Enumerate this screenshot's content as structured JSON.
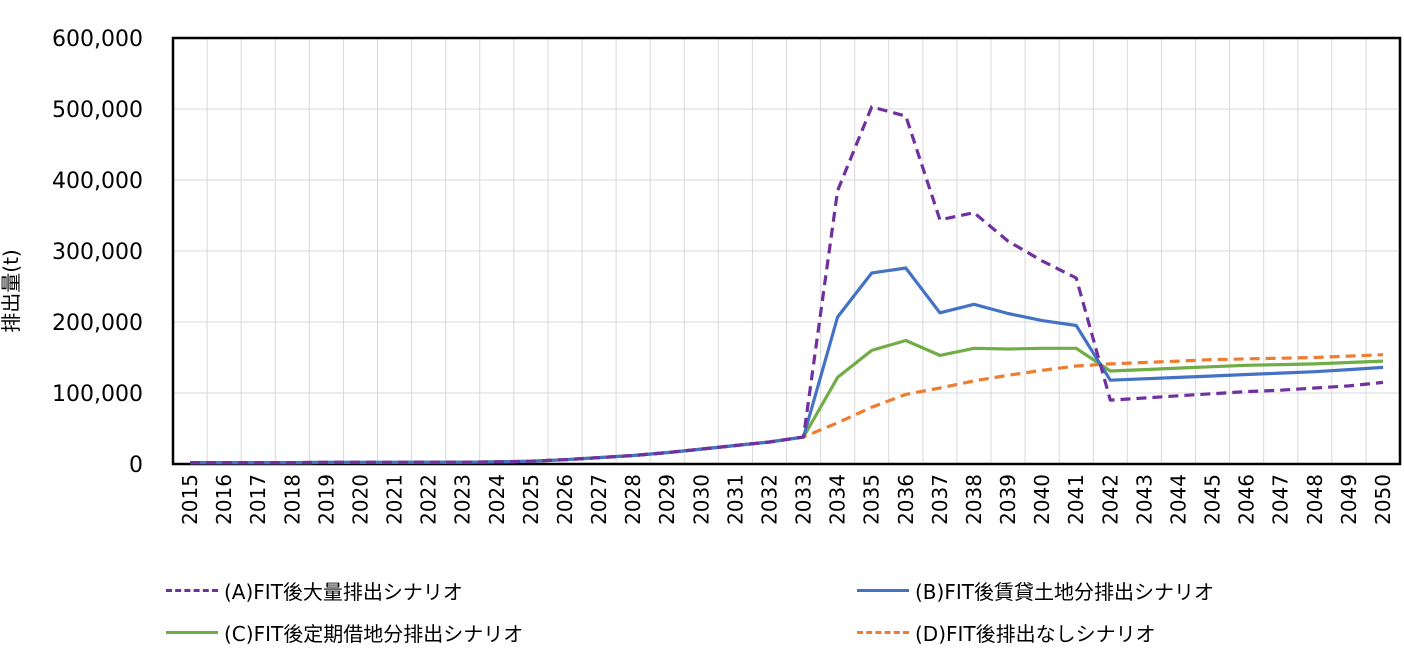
{
  "chart_data": {
    "type": "line",
    "ylabel": "排出量(t)",
    "xlabel": "",
    "ylim": [
      0,
      600000
    ],
    "yticks": [
      0,
      100000,
      200000,
      300000,
      400000,
      500000,
      600000
    ],
    "ytick_labels": [
      "0",
      "100,000",
      "200,000",
      "300,000",
      "400,000",
      "500,000",
      "600,000"
    ],
    "categories": [
      "2015",
      "2016",
      "2017",
      "2018",
      "2019",
      "2020",
      "2021",
      "2022",
      "2023",
      "2024",
      "2025",
      "2026",
      "2027",
      "2028",
      "2029",
      "2030",
      "2031",
      "2032",
      "2033",
      "2034",
      "2035",
      "2036",
      "2037",
      "2038",
      "2039",
      "2040",
      "2041",
      "2042",
      "2043",
      "2044",
      "2045",
      "2046",
      "2047",
      "2048",
      "2049",
      "2050"
    ],
    "grid": true,
    "legend_position": "bottom",
    "series": [
      {
        "name": "(A)FIT後大量排出シナリオ",
        "color": "#7030A0",
        "dash": "dashed",
        "values": [
          2000,
          2000,
          2000,
          2000,
          2200,
          2300,
          2400,
          2500,
          2600,
          3000,
          4000,
          6000,
          9000,
          12000,
          16000,
          21000,
          26000,
          31000,
          38000,
          385000,
          503000,
          490000,
          344000,
          354000,
          314000,
          286000,
          262000,
          90000,
          93000,
          96000,
          99000,
          102000,
          104000,
          107000,
          110000,
          115000
        ]
      },
      {
        "name": "(B)FIT後賃貸土地分排出シナリオ",
        "color": "#4472C4",
        "dash": "solid",
        "values": [
          2000,
          2000,
          2000,
          2000,
          2200,
          2300,
          2400,
          2500,
          2600,
          3000,
          4000,
          6000,
          9000,
          12000,
          16000,
          21000,
          26000,
          31000,
          38000,
          207000,
          269000,
          276000,
          213000,
          225000,
          212000,
          202000,
          195000,
          118000,
          120000,
          122000,
          124000,
          126000,
          128000,
          130000,
          133000,
          136000
        ]
      },
      {
        "name": "(C)FIT後定期借地分排出シナリオ",
        "color": "#70AD47",
        "dash": "solid",
        "values": [
          2000,
          2000,
          2000,
          2000,
          2200,
          2300,
          2400,
          2500,
          2600,
          3000,
          4000,
          6000,
          9000,
          12000,
          16000,
          21000,
          26000,
          31000,
          38000,
          122000,
          160000,
          174000,
          153000,
          163000,
          162000,
          163000,
          163000,
          131000,
          133000,
          135000,
          137000,
          139000,
          140000,
          141000,
          143000,
          145000
        ]
      },
      {
        "name": "(D)FIT後排出なしシナリオ",
        "color": "#ED7D31",
        "dash": "dashed",
        "values": [
          2000,
          2000,
          2000,
          2000,
          2200,
          2300,
          2400,
          2500,
          2600,
          3000,
          4000,
          6000,
          9000,
          12000,
          16000,
          21000,
          26000,
          31000,
          38000,
          58000,
          80000,
          98000,
          107000,
          117000,
          125000,
          132000,
          138000,
          141000,
          143000,
          145000,
          147000,
          148000,
          149000,
          150000,
          152000,
          154000
        ]
      }
    ]
  }
}
